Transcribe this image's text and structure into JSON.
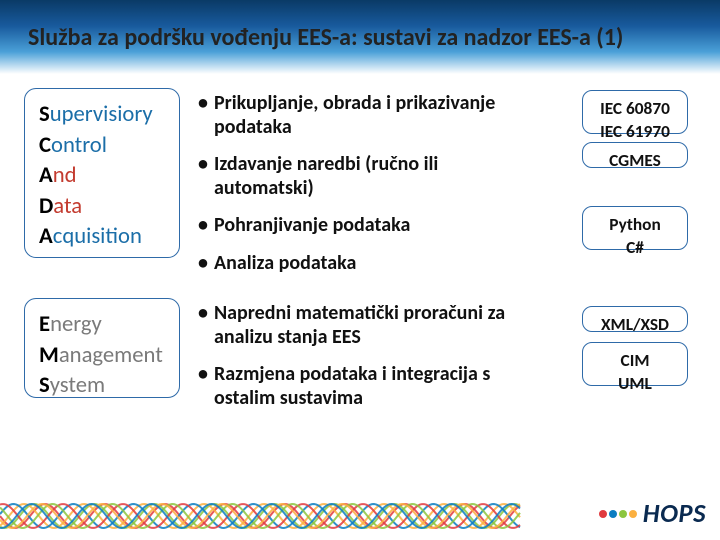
{
  "title": {
    "text": "Služba za podršku vođenju EES-a: sustavi za nadzor EES-a (1)",
    "fontsize_pt": 18
  },
  "colors": {
    "title_band_top": "#0a3a66",
    "title_band_mid": "#4aa0d8",
    "box_border": "#2e6aa8",
    "logo_text": "#0a2a50",
    "wave_colors": [
      "#e03a3e",
      "#8cc63f",
      "#fbb040",
      "#0b7dc2"
    ]
  },
  "scada": {
    "lines": [
      {
        "first": "S",
        "rest": "upervisiory",
        "color": "#1b6ea8"
      },
      {
        "first": "C",
        "rest": "ontrol",
        "color": "#1b6ea8"
      },
      {
        "first": "A",
        "rest": "nd",
        "color": "#c33b2f"
      },
      {
        "first": "D",
        "rest": "ata",
        "color": "#c33b2f"
      },
      {
        "first": "A",
        "rest": "cquisition",
        "color": "#1b6ea8"
      }
    ],
    "fontsize_pt": 17
  },
  "ems": {
    "lines": [
      {
        "first": "E",
        "rest": "nergy",
        "color": "#7a7a7a"
      },
      {
        "first": "M",
        "rest": "anagement",
        "color": "#7a7a7a"
      },
      {
        "first": "S",
        "rest": "ystem",
        "color": "#7a7a7a"
      }
    ],
    "fontsize_pt": 17
  },
  "bullets_scada": [
    "Prikupljanje, obrada i prikazivanje podataka",
    "Izdavanje naredbi (ručno ili automatski)",
    "Pohranjivanje podataka",
    "Analiza podataka"
  ],
  "bullets_ems": [
    "Napredni matematički proračuni za analizu stanja EES",
    "Razmjena podataka i integracija s ostalim sustavima"
  ],
  "bullets_fontsize_pt": 15,
  "right_boxes": {
    "iec": {
      "lines": [
        "IEC 60870",
        "IEC 61970"
      ]
    },
    "cgmes": {
      "lines": [
        "CGMES"
      ]
    },
    "lang": {
      "lines": [
        "Python",
        "C#"
      ]
    },
    "xml": {
      "lines": [
        "XML/XSD"
      ]
    },
    "cim": {
      "lines": [
        "CIM",
        "UML"
      ]
    },
    "fontsize_pt": 13
  },
  "logo": {
    "text": "HOPS",
    "fontsize_pt": 20,
    "dots": [
      "#e03a3e",
      "#0b7dc2",
      "#8cc63f",
      "#fbb040"
    ]
  }
}
